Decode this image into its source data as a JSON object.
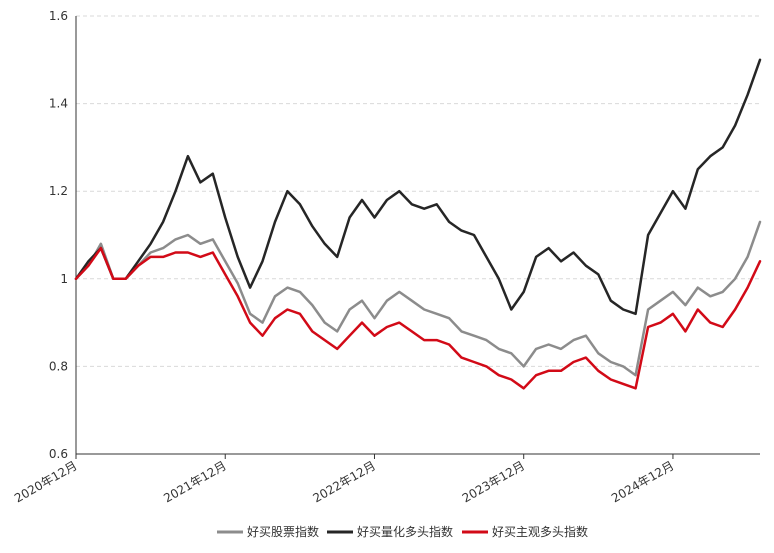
{
  "chart_data": {
    "type": "line",
    "title": "",
    "xlabel": "",
    "ylabel": "",
    "ylim": [
      0.6,
      1.6
    ],
    "y_ticks": [
      "0.6",
      "0.8",
      "1",
      "1.2",
      "1.4",
      "1.6"
    ],
    "x_tick_labels": [
      "2020年12月",
      "2021年12月",
      "2022年12月",
      "2023年12月",
      "2024年12月"
    ],
    "grid": "horizontal dashed",
    "legend_position": "bottom",
    "x": [
      "2020-12",
      "2021-01",
      "2021-02",
      "2021-03",
      "2021-04",
      "2021-05",
      "2021-06",
      "2021-07",
      "2021-08",
      "2021-09",
      "2021-10",
      "2021-11",
      "2021-12",
      "2022-01",
      "2022-02",
      "2022-03",
      "2022-04",
      "2022-05",
      "2022-06",
      "2022-07",
      "2022-08",
      "2022-09",
      "2022-10",
      "2022-11",
      "2022-12",
      "2023-01",
      "2023-02",
      "2023-03",
      "2023-04",
      "2023-05",
      "2023-06",
      "2023-07",
      "2023-08",
      "2023-09",
      "2023-10",
      "2023-11",
      "2023-12",
      "2024-01",
      "2024-02",
      "2024-03",
      "2024-04",
      "2024-05",
      "2024-06",
      "2024-07",
      "2024-08",
      "2024-09",
      "2024-10",
      "2024-11",
      "2024-12",
      "2025-01",
      "2025-02",
      "2025-03",
      "2025-04",
      "2025-05",
      "2025-06",
      "2025-07"
    ],
    "series": [
      {
        "name": "好买股票指数",
        "color": "#8c8c8c",
        "values": [
          1.0,
          1.03,
          1.08,
          1.0,
          1.0,
          1.03,
          1.06,
          1.07,
          1.09,
          1.1,
          1.08,
          1.09,
          1.04,
          0.99,
          0.92,
          0.9,
          0.96,
          0.98,
          0.97,
          0.94,
          0.9,
          0.88,
          0.93,
          0.95,
          0.91,
          0.95,
          0.97,
          0.95,
          0.93,
          0.92,
          0.91,
          0.88,
          0.87,
          0.86,
          0.84,
          0.83,
          0.8,
          0.84,
          0.85,
          0.84,
          0.86,
          0.87,
          0.83,
          0.81,
          0.8,
          0.78,
          0.93,
          0.95,
          0.97,
          0.94,
          0.98,
          0.96,
          0.97,
          1.0,
          1.05,
          1.13
        ]
      },
      {
        "name": "好买量化多头指数",
        "color": "#262626",
        "values": [
          1.0,
          1.04,
          1.07,
          1.0,
          1.0,
          1.04,
          1.08,
          1.13,
          1.2,
          1.28,
          1.22,
          1.24,
          1.14,
          1.05,
          0.98,
          1.04,
          1.13,
          1.2,
          1.17,
          1.12,
          1.08,
          1.05,
          1.14,
          1.18,
          1.14,
          1.18,
          1.2,
          1.17,
          1.16,
          1.17,
          1.13,
          1.11,
          1.1,
          1.05,
          1.0,
          0.93,
          0.97,
          1.05,
          1.07,
          1.04,
          1.06,
          1.03,
          1.01,
          0.95,
          0.93,
          0.92,
          1.1,
          1.15,
          1.2,
          1.16,
          1.25,
          1.28,
          1.3,
          1.35,
          1.42,
          1.5
        ]
      },
      {
        "name": "好买主观多头指数",
        "color": "#d20a17",
        "values": [
          1.0,
          1.03,
          1.07,
          1.0,
          1.0,
          1.03,
          1.05,
          1.05,
          1.06,
          1.06,
          1.05,
          1.06,
          1.01,
          0.96,
          0.9,
          0.87,
          0.91,
          0.93,
          0.92,
          0.88,
          0.86,
          0.84,
          0.87,
          0.9,
          0.87,
          0.89,
          0.9,
          0.88,
          0.86,
          0.86,
          0.85,
          0.82,
          0.81,
          0.8,
          0.78,
          0.77,
          0.75,
          0.78,
          0.79,
          0.79,
          0.81,
          0.82,
          0.79,
          0.77,
          0.76,
          0.75,
          0.89,
          0.9,
          0.92,
          0.88,
          0.93,
          0.9,
          0.89,
          0.93,
          0.98,
          1.04
        ]
      }
    ]
  }
}
